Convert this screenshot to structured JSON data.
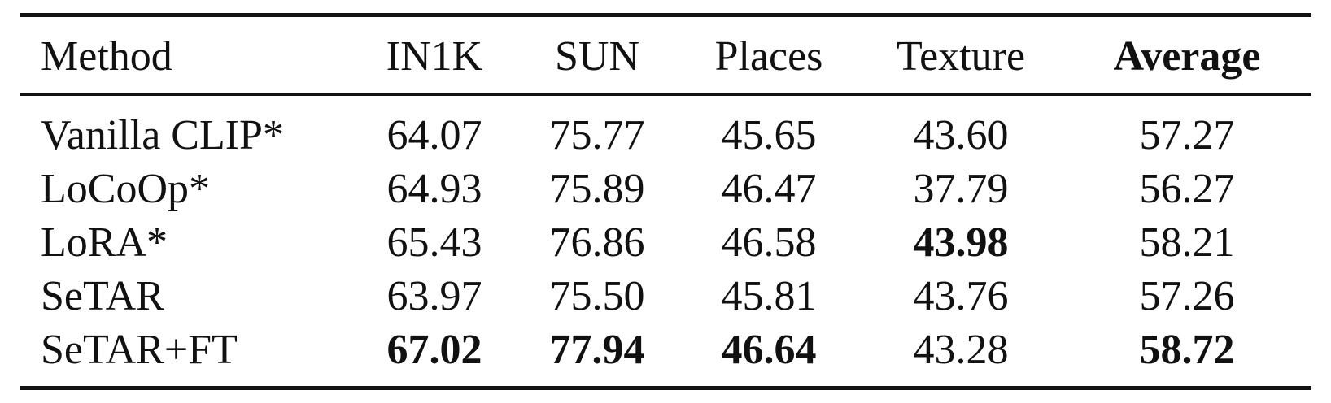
{
  "table": {
    "headers": [
      "Method",
      "IN1K",
      "SUN",
      "Places",
      "Texture",
      "Average"
    ],
    "rows": [
      {
        "method": "Vanilla CLIP*",
        "values": [
          "64.07",
          "75.77",
          "45.65",
          "43.60",
          "57.27"
        ]
      },
      {
        "method": "LoCoOp*",
        "values": [
          "64.93",
          "75.89",
          "46.47",
          "37.79",
          "56.27"
        ]
      },
      {
        "method": "LoRA*",
        "values": [
          "65.43",
          "76.86",
          "46.58",
          "43.98",
          "58.21"
        ]
      },
      {
        "method": "SeTAR",
        "values": [
          "63.97",
          "75.50",
          "45.81",
          "43.76",
          "57.26"
        ]
      },
      {
        "method": "SeTAR+FT",
        "values": [
          "67.02",
          "77.94",
          "46.64",
          "43.28",
          "58.72"
        ]
      }
    ]
  }
}
